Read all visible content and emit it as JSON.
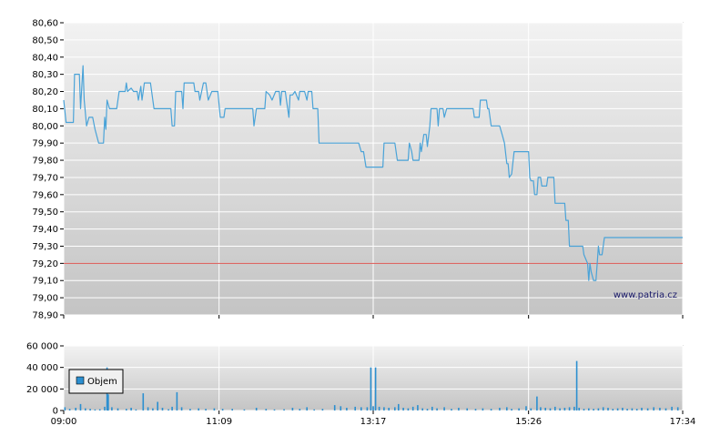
{
  "chart_data": [
    {
      "type": "line",
      "name": "price",
      "ylim": [
        78.9,
        80.6
      ],
      "y_ticks": [
        "80,60",
        "80,50",
        "80,40",
        "80,30",
        "80,20",
        "80,10",
        "80,00",
        "79,90",
        "79,80",
        "79,70",
        "79,60",
        "79,50",
        "79,40",
        "79,30",
        "79,20",
        "79,10",
        "79,00",
        "78,90"
      ],
      "x_ticks": [
        "09:00",
        "11:09",
        "13:17",
        "15:26",
        "17:34"
      ],
      "reference_line": 79.2,
      "reference_color": "#d9534f",
      "line_color": "#4aa3d8",
      "watermark": "www.patria.cz",
      "grid": true,
      "points": [
        [
          "09:00",
          80.15
        ],
        [
          "09:02",
          80.02
        ],
        [
          "09:08",
          80.02
        ],
        [
          "09:09",
          80.3
        ],
        [
          "09:13",
          80.3
        ],
        [
          "09:14",
          80.1
        ],
        [
          "09:16",
          80.35
        ],
        [
          "09:17",
          80.15
        ],
        [
          "09:19",
          80.0
        ],
        [
          "09:21",
          80.05
        ],
        [
          "09:24",
          80.05
        ],
        [
          "09:26",
          79.98
        ],
        [
          "09:29",
          79.9
        ],
        [
          "09:33",
          79.9
        ],
        [
          "09:34",
          80.05
        ],
        [
          "09:35",
          79.98
        ],
        [
          "09:36",
          80.15
        ],
        [
          "09:38",
          80.1
        ],
        [
          "09:44",
          80.1
        ],
        [
          "09:46",
          80.2
        ],
        [
          "09:51",
          80.2
        ],
        [
          "09:52",
          80.25
        ],
        [
          "09:53",
          80.2
        ],
        [
          "09:56",
          80.22
        ],
        [
          "09:58",
          80.2
        ],
        [
          "10:01",
          80.2
        ],
        [
          "10:02",
          80.15
        ],
        [
          "10:04",
          80.23
        ],
        [
          "10:05",
          80.15
        ],
        [
          "10:07",
          80.25
        ],
        [
          "10:12",
          80.25
        ],
        [
          "10:15",
          80.1
        ],
        [
          "10:29",
          80.1
        ],
        [
          "10:30",
          80.0
        ],
        [
          "10:32",
          80.0
        ],
        [
          "10:33",
          80.2
        ],
        [
          "10:38",
          80.2
        ],
        [
          "10:39",
          80.1
        ],
        [
          "10:40",
          80.25
        ],
        [
          "10:48",
          80.25
        ],
        [
          "10:49",
          80.2
        ],
        [
          "10:52",
          80.2
        ],
        [
          "10:53",
          80.15
        ],
        [
          "10:56",
          80.25
        ],
        [
          "10:58",
          80.25
        ],
        [
          "11:00",
          80.15
        ],
        [
          "11:03",
          80.2
        ],
        [
          "11:07",
          80.2
        ],
        [
          "11:08",
          80.2
        ],
        [
          "11:10",
          80.05
        ],
        [
          "11:13",
          80.05
        ],
        [
          "11:14",
          80.1
        ],
        [
          "11:37",
          80.1
        ],
        [
          "11:38",
          80.0
        ],
        [
          "11:40",
          80.1
        ],
        [
          "11:47",
          80.1
        ],
        [
          "11:48",
          80.2
        ],
        [
          "11:51",
          80.18
        ],
        [
          "11:53",
          80.15
        ],
        [
          "11:56",
          80.2
        ],
        [
          "11:59",
          80.2
        ],
        [
          "12:00",
          80.12
        ],
        [
          "12:01",
          80.2
        ],
        [
          "12:04",
          80.2
        ],
        [
          "12:05",
          80.15
        ],
        [
          "12:07",
          80.05
        ],
        [
          "12:08",
          80.18
        ],
        [
          "12:10",
          80.18
        ],
        [
          "12:12",
          80.2
        ],
        [
          "12:15",
          80.15
        ],
        [
          "12:16",
          80.2
        ],
        [
          "12:20",
          80.2
        ],
        [
          "12:22",
          80.15
        ],
        [
          "12:23",
          80.2
        ],
        [
          "12:26",
          80.2
        ],
        [
          "12:27",
          80.1
        ],
        [
          "12:31",
          80.1
        ],
        [
          "12:32",
          79.9
        ],
        [
          "13:05",
          79.9
        ],
        [
          "13:07",
          79.85
        ],
        [
          "13:09",
          79.85
        ],
        [
          "13:11",
          79.76
        ],
        [
          "13:25",
          79.76
        ],
        [
          "13:26",
          79.9
        ],
        [
          "13:35",
          79.9
        ],
        [
          "13:37",
          79.8
        ],
        [
          "13:46",
          79.8
        ],
        [
          "13:47",
          79.9
        ],
        [
          "13:49",
          79.85
        ],
        [
          "13:50",
          79.8
        ],
        [
          "13:55",
          79.8
        ],
        [
          "13:56",
          79.9
        ],
        [
          "13:57",
          79.85
        ],
        [
          "13:59",
          79.95
        ],
        [
          "14:01",
          79.95
        ],
        [
          "14:02",
          79.88
        ],
        [
          "14:04",
          80.0
        ],
        [
          "14:05",
          80.1
        ],
        [
          "14:09",
          80.1
        ],
        [
          "14:10",
          80.1
        ],
        [
          "14:11",
          80.0
        ],
        [
          "14:12",
          80.1
        ],
        [
          "14:15",
          80.1
        ],
        [
          "14:16",
          80.05
        ],
        [
          "14:18",
          80.1
        ],
        [
          "14:40",
          80.1
        ],
        [
          "14:41",
          80.05
        ],
        [
          "14:45",
          80.05
        ],
        [
          "14:46",
          80.15
        ],
        [
          "14:51",
          80.15
        ],
        [
          "14:52",
          80.1
        ],
        [
          "14:53",
          80.1
        ],
        [
          "14:55",
          80.0
        ],
        [
          "15:02",
          80.0
        ],
        [
          "15:04",
          79.95
        ],
        [
          "15:06",
          79.9
        ],
        [
          "15:08",
          79.78
        ],
        [
          "15:09",
          79.78
        ],
        [
          "15:10",
          79.7
        ],
        [
          "15:12",
          79.72
        ],
        [
          "15:14",
          79.85
        ],
        [
          "15:26",
          79.85
        ],
        [
          "15:27",
          79.7
        ],
        [
          "15:28",
          79.68
        ],
        [
          "15:30",
          79.68
        ],
        [
          "15:31",
          79.6
        ],
        [
          "15:33",
          79.6
        ],
        [
          "15:34",
          79.7
        ],
        [
          "15:36",
          79.7
        ],
        [
          "15:37",
          79.65
        ],
        [
          "15:41",
          79.65
        ],
        [
          "15:42",
          79.7
        ],
        [
          "15:47",
          79.7
        ],
        [
          "15:48",
          79.55
        ],
        [
          "15:56",
          79.55
        ],
        [
          "15:57",
          79.45
        ],
        [
          "15:59",
          79.45
        ],
        [
          "16:00",
          79.3
        ],
        [
          "16:11",
          79.3
        ],
        [
          "16:12",
          79.25
        ],
        [
          "16:15",
          79.2
        ],
        [
          "16:16",
          79.1
        ],
        [
          "16:17",
          79.2
        ],
        [
          "16:18",
          79.15
        ],
        [
          "16:20",
          79.1
        ],
        [
          "16:22",
          79.1
        ],
        [
          "16:23",
          79.2
        ],
        [
          "16:24",
          79.3
        ],
        [
          "16:25",
          79.25
        ],
        [
          "16:27",
          79.25
        ],
        [
          "16:29",
          79.35
        ],
        [
          "17:34",
          79.35
        ]
      ]
    },
    {
      "type": "bar",
      "name": "volume",
      "ylim": [
        0,
        60000
      ],
      "y_ticks": [
        "60 000",
        "40 000",
        "20 000",
        "0"
      ],
      "x_ticks": [
        "09:00",
        "11:09",
        "13:17",
        "15:26",
        "17:34"
      ],
      "legend": "Objem",
      "bar_color": "#2b8fd0",
      "grid": true,
      "bars": [
        [
          "09:01",
          3000
        ],
        [
          "09:05",
          1500
        ],
        [
          "09:10",
          2500
        ],
        [
          "09:14",
          6000
        ],
        [
          "09:18",
          2000
        ],
        [
          "09:22",
          1500
        ],
        [
          "09:26",
          1000
        ],
        [
          "09:30",
          1200
        ],
        [
          "09:34",
          3500
        ],
        [
          "09:36",
          40000
        ],
        [
          "09:37",
          15000
        ],
        [
          "09:40",
          3000
        ],
        [
          "09:45",
          2000
        ],
        [
          "09:52",
          1500
        ],
        [
          "09:56",
          2500
        ],
        [
          "10:00",
          1000
        ],
        [
          "10:06",
          16000
        ],
        [
          "10:10",
          3000
        ],
        [
          "10:14",
          2000
        ],
        [
          "10:18",
          8000
        ],
        [
          "10:22",
          2500
        ],
        [
          "10:27",
          1200
        ],
        [
          "10:30",
          3500
        ],
        [
          "10:34",
          17000
        ],
        [
          "10:38",
          3000
        ],
        [
          "10:45",
          1500
        ],
        [
          "10:52",
          2000
        ],
        [
          "10:58",
          1500
        ],
        [
          "11:05",
          2000
        ],
        [
          "11:12",
          1500
        ],
        [
          "11:20",
          1500
        ],
        [
          "11:30",
          1000
        ],
        [
          "11:40",
          2500
        ],
        [
          "11:48",
          1500
        ],
        [
          "11:55",
          1000
        ],
        [
          "12:03",
          1200
        ],
        [
          "12:10",
          2500
        ],
        [
          "12:16",
          1500
        ],
        [
          "12:22",
          3000
        ],
        [
          "12:28",
          1000
        ],
        [
          "12:35",
          1500
        ],
        [
          "12:45",
          5000
        ],
        [
          "12:50",
          4000
        ],
        [
          "12:55",
          2500
        ],
        [
          "13:02",
          3500
        ],
        [
          "13:07",
          3000
        ],
        [
          "13:12",
          3000
        ],
        [
          "13:15",
          40000
        ],
        [
          "13:17",
          4000
        ],
        [
          "13:19",
          40000
        ],
        [
          "13:22",
          3500
        ],
        [
          "13:26",
          3000
        ],
        [
          "13:30",
          2500
        ],
        [
          "13:35",
          3000
        ],
        [
          "13:38",
          6000
        ],
        [
          "13:42",
          2500
        ],
        [
          "13:46",
          2000
        ],
        [
          "13:50",
          3500
        ],
        [
          "13:54",
          5000
        ],
        [
          "13:58",
          2000
        ],
        [
          "14:02",
          1500
        ],
        [
          "14:06",
          3500
        ],
        [
          "14:10",
          2000
        ],
        [
          "14:16",
          3000
        ],
        [
          "14:22",
          1500
        ],
        [
          "14:28",
          2500
        ],
        [
          "14:35",
          2000
        ],
        [
          "14:42",
          1500
        ],
        [
          "14:48",
          2000
        ],
        [
          "14:55",
          1500
        ],
        [
          "15:02",
          2500
        ],
        [
          "15:08",
          3000
        ],
        [
          "15:12",
          1500
        ],
        [
          "15:18",
          2000
        ],
        [
          "15:24",
          4000
        ],
        [
          "15:28",
          2000
        ],
        [
          "15:33",
          13000
        ],
        [
          "15:36",
          3000
        ],
        [
          "15:40",
          2500
        ],
        [
          "15:44",
          2000
        ],
        [
          "15:48",
          3500
        ],
        [
          "15:52",
          2000
        ],
        [
          "15:56",
          2500
        ],
        [
          "16:00",
          3000
        ],
        [
          "16:04",
          3500
        ],
        [
          "16:06",
          46000
        ],
        [
          "16:08",
          2500
        ],
        [
          "16:12",
          1500
        ],
        [
          "16:16",
          2000
        ],
        [
          "16:20",
          1500
        ],
        [
          "16:24",
          2000
        ],
        [
          "16:28",
          3000
        ],
        [
          "16:32",
          2500
        ],
        [
          "16:36",
          1500
        ],
        [
          "16:40",
          2000
        ],
        [
          "16:44",
          2500
        ],
        [
          "16:48",
          1500
        ],
        [
          "16:52",
          2000
        ],
        [
          "16:56",
          1500
        ],
        [
          "17:00",
          2500
        ],
        [
          "17:05",
          2000
        ],
        [
          "17:10",
          3000
        ],
        [
          "17:15",
          2500
        ],
        [
          "17:20",
          2000
        ],
        [
          "17:25",
          3500
        ],
        [
          "17:30",
          3000
        ]
      ]
    }
  ]
}
